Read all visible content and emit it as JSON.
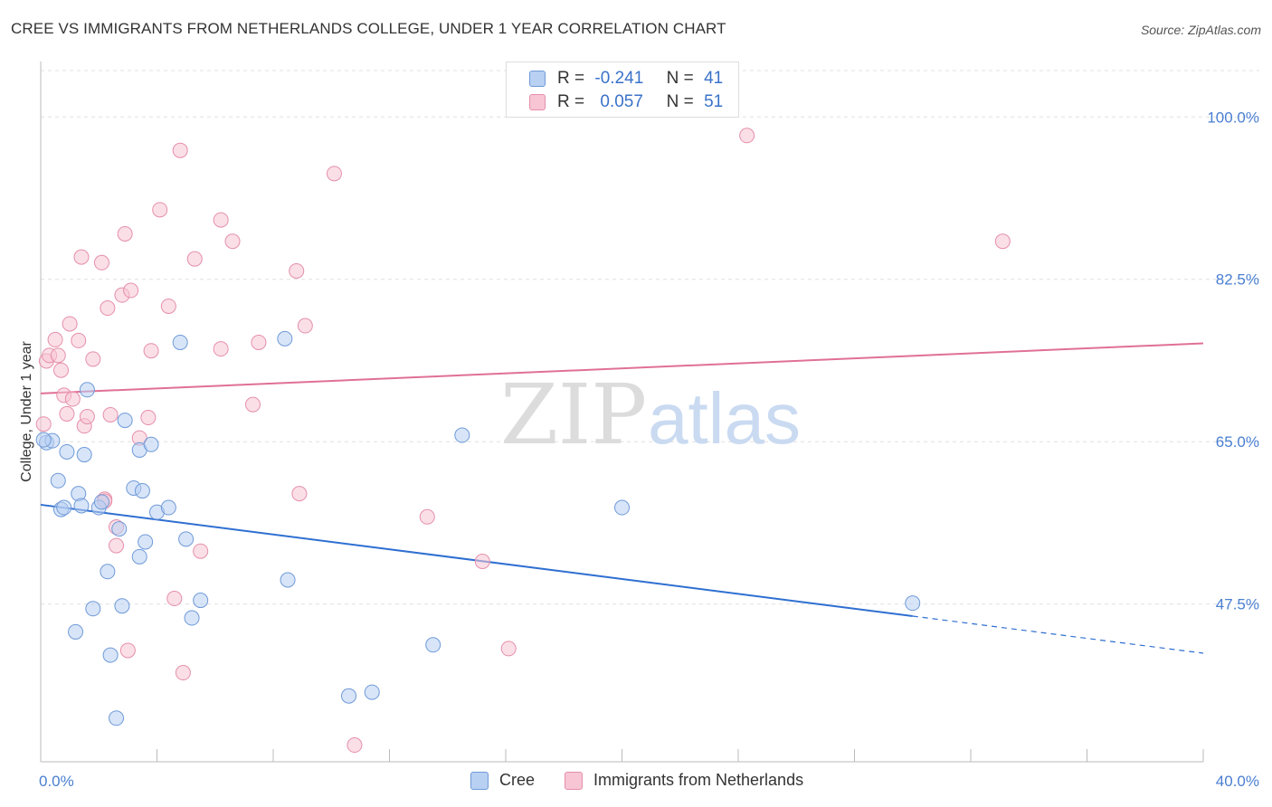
{
  "header": {
    "title": "CREE VS IMMIGRANTS FROM NETHERLANDS COLLEGE, UNDER 1 YEAR CORRELATION CHART",
    "source": "Source: ZipAtlas.com"
  },
  "watermark": {
    "zip": "ZIP",
    "atlas": "atlas"
  },
  "legend_top": {
    "rows": [
      {
        "r_label": "R =",
        "r_value": "-0.241",
        "n_label": "N =",
        "n_value": "41"
      },
      {
        "r_label": "R =",
        "r_value": "0.057",
        "n_label": "N =",
        "n_value": "51"
      }
    ]
  },
  "colors": {
    "cree_fill": "#b8d0f2",
    "cree_stroke": "#6f9ad8",
    "cree_line": "#2f6fd1",
    "neth_fill": "#f7c5d4",
    "neth_stroke": "#e58fab",
    "neth_line": "#e07097",
    "tick_color": "#4a7fd1",
    "grid": "#e0e0e0"
  },
  "chart_data": {
    "type": "scatter",
    "title": "CREE VS IMMIGRANTS FROM NETHERLANDS COLLEGE, UNDER 1 YEAR CORRELATION CHART",
    "xlabel": "",
    "ylabel": "College, Under 1 year",
    "xlim": [
      0,
      40
    ],
    "ylim": [
      30.5,
      105
    ],
    "x_tick_labels": [
      "0.0%",
      "40.0%"
    ],
    "y_ticks": [
      47.5,
      65.0,
      82.5,
      100.0
    ],
    "y_tick_labels": [
      "47.5%",
      "65.0%",
      "82.5%",
      "100.0%"
    ],
    "grid": true,
    "legend": "top-center",
    "series": [
      {
        "name": "Cree",
        "r": -0.241,
        "n": 41,
        "trend": {
          "x0": 0,
          "y0": 58.2,
          "x1": 30,
          "y1": 46.2,
          "dash_to_x": 40,
          "dash_to_y": 42.2
        },
        "points": [
          [
            0.2,
            64.9
          ],
          [
            0.4,
            65.1
          ],
          [
            0.6,
            60.8
          ],
          [
            0.7,
            57.7
          ],
          [
            0.8,
            57.9
          ],
          [
            0.9,
            63.9
          ],
          [
            1.2,
            44.5
          ],
          [
            1.3,
            59.4
          ],
          [
            1.4,
            58.1
          ],
          [
            1.5,
            63.6
          ],
          [
            1.6,
            70.6
          ],
          [
            1.8,
            47.0
          ],
          [
            2.0,
            57.9
          ],
          [
            2.1,
            58.5
          ],
          [
            2.3,
            51.0
          ],
          [
            2.4,
            42.0
          ],
          [
            2.6,
            35.2
          ],
          [
            2.7,
            55.6
          ],
          [
            2.8,
            47.3
          ],
          [
            2.9,
            67.3
          ],
          [
            3.2,
            60.0
          ],
          [
            3.4,
            52.6
          ],
          [
            3.4,
            64.1
          ],
          [
            3.5,
            59.7
          ],
          [
            3.6,
            54.2
          ],
          [
            3.8,
            64.7
          ],
          [
            4.0,
            57.4
          ],
          [
            4.4,
            57.9
          ],
          [
            4.8,
            75.7
          ],
          [
            5.0,
            54.5
          ],
          [
            5.2,
            46.0
          ],
          [
            5.5,
            47.9
          ],
          [
            8.4,
            76.1
          ],
          [
            8.5,
            50.1
          ],
          [
            10.6,
            37.6
          ],
          [
            11.4,
            38.0
          ],
          [
            13.5,
            43.1
          ],
          [
            14.5,
            65.7
          ],
          [
            20.0,
            57.9
          ],
          [
            30.0,
            47.6
          ],
          [
            0.1,
            65.2
          ]
        ]
      },
      {
        "name": "Immigrants from Netherlands",
        "r": 0.057,
        "n": 51,
        "trend": {
          "x0": 0,
          "y0": 70.2,
          "x1": 40,
          "y1": 75.6
        },
        "points": [
          [
            0.1,
            66.9
          ],
          [
            0.2,
            73.7
          ],
          [
            0.3,
            74.3
          ],
          [
            0.5,
            76.0
          ],
          [
            0.6,
            74.3
          ],
          [
            0.7,
            72.7
          ],
          [
            0.8,
            70.0
          ],
          [
            0.9,
            68.0
          ],
          [
            1.0,
            77.7
          ],
          [
            1.1,
            69.6
          ],
          [
            1.3,
            75.9
          ],
          [
            1.4,
            84.9
          ],
          [
            1.5,
            66.7
          ],
          [
            1.6,
            67.7
          ],
          [
            1.8,
            73.9
          ],
          [
            2.1,
            84.3
          ],
          [
            2.2,
            58.8
          ],
          [
            2.3,
            79.4
          ],
          [
            2.4,
            67.9
          ],
          [
            2.6,
            53.8
          ],
          [
            2.6,
            55.8
          ],
          [
            2.8,
            80.8
          ],
          [
            2.9,
            87.4
          ],
          [
            3.0,
            42.5
          ],
          [
            3.1,
            81.3
          ],
          [
            3.4,
            65.4
          ],
          [
            3.7,
            67.6
          ],
          [
            3.8,
            74.8
          ],
          [
            4.1,
            90.0
          ],
          [
            4.4,
            79.6
          ],
          [
            4.6,
            48.1
          ],
          [
            4.8,
            96.4
          ],
          [
            4.9,
            40.1
          ],
          [
            5.3,
            84.7
          ],
          [
            5.5,
            53.2
          ],
          [
            6.2,
            75.0
          ],
          [
            6.2,
            88.9
          ],
          [
            6.6,
            86.6
          ],
          [
            7.3,
            69.0
          ],
          [
            7.5,
            75.7
          ],
          [
            8.8,
            83.4
          ],
          [
            8.9,
            59.4
          ],
          [
            9.1,
            77.5
          ],
          [
            10.1,
            93.9
          ],
          [
            10.8,
            32.3
          ],
          [
            13.3,
            56.9
          ],
          [
            15.2,
            52.1
          ],
          [
            16.1,
            42.7
          ],
          [
            24.3,
            98.0
          ],
          [
            33.1,
            86.6
          ],
          [
            2.2,
            58.6
          ]
        ]
      }
    ]
  },
  "bottom_legend": {
    "items": [
      {
        "label": "Cree"
      },
      {
        "label": "Immigrants from Netherlands"
      }
    ]
  }
}
